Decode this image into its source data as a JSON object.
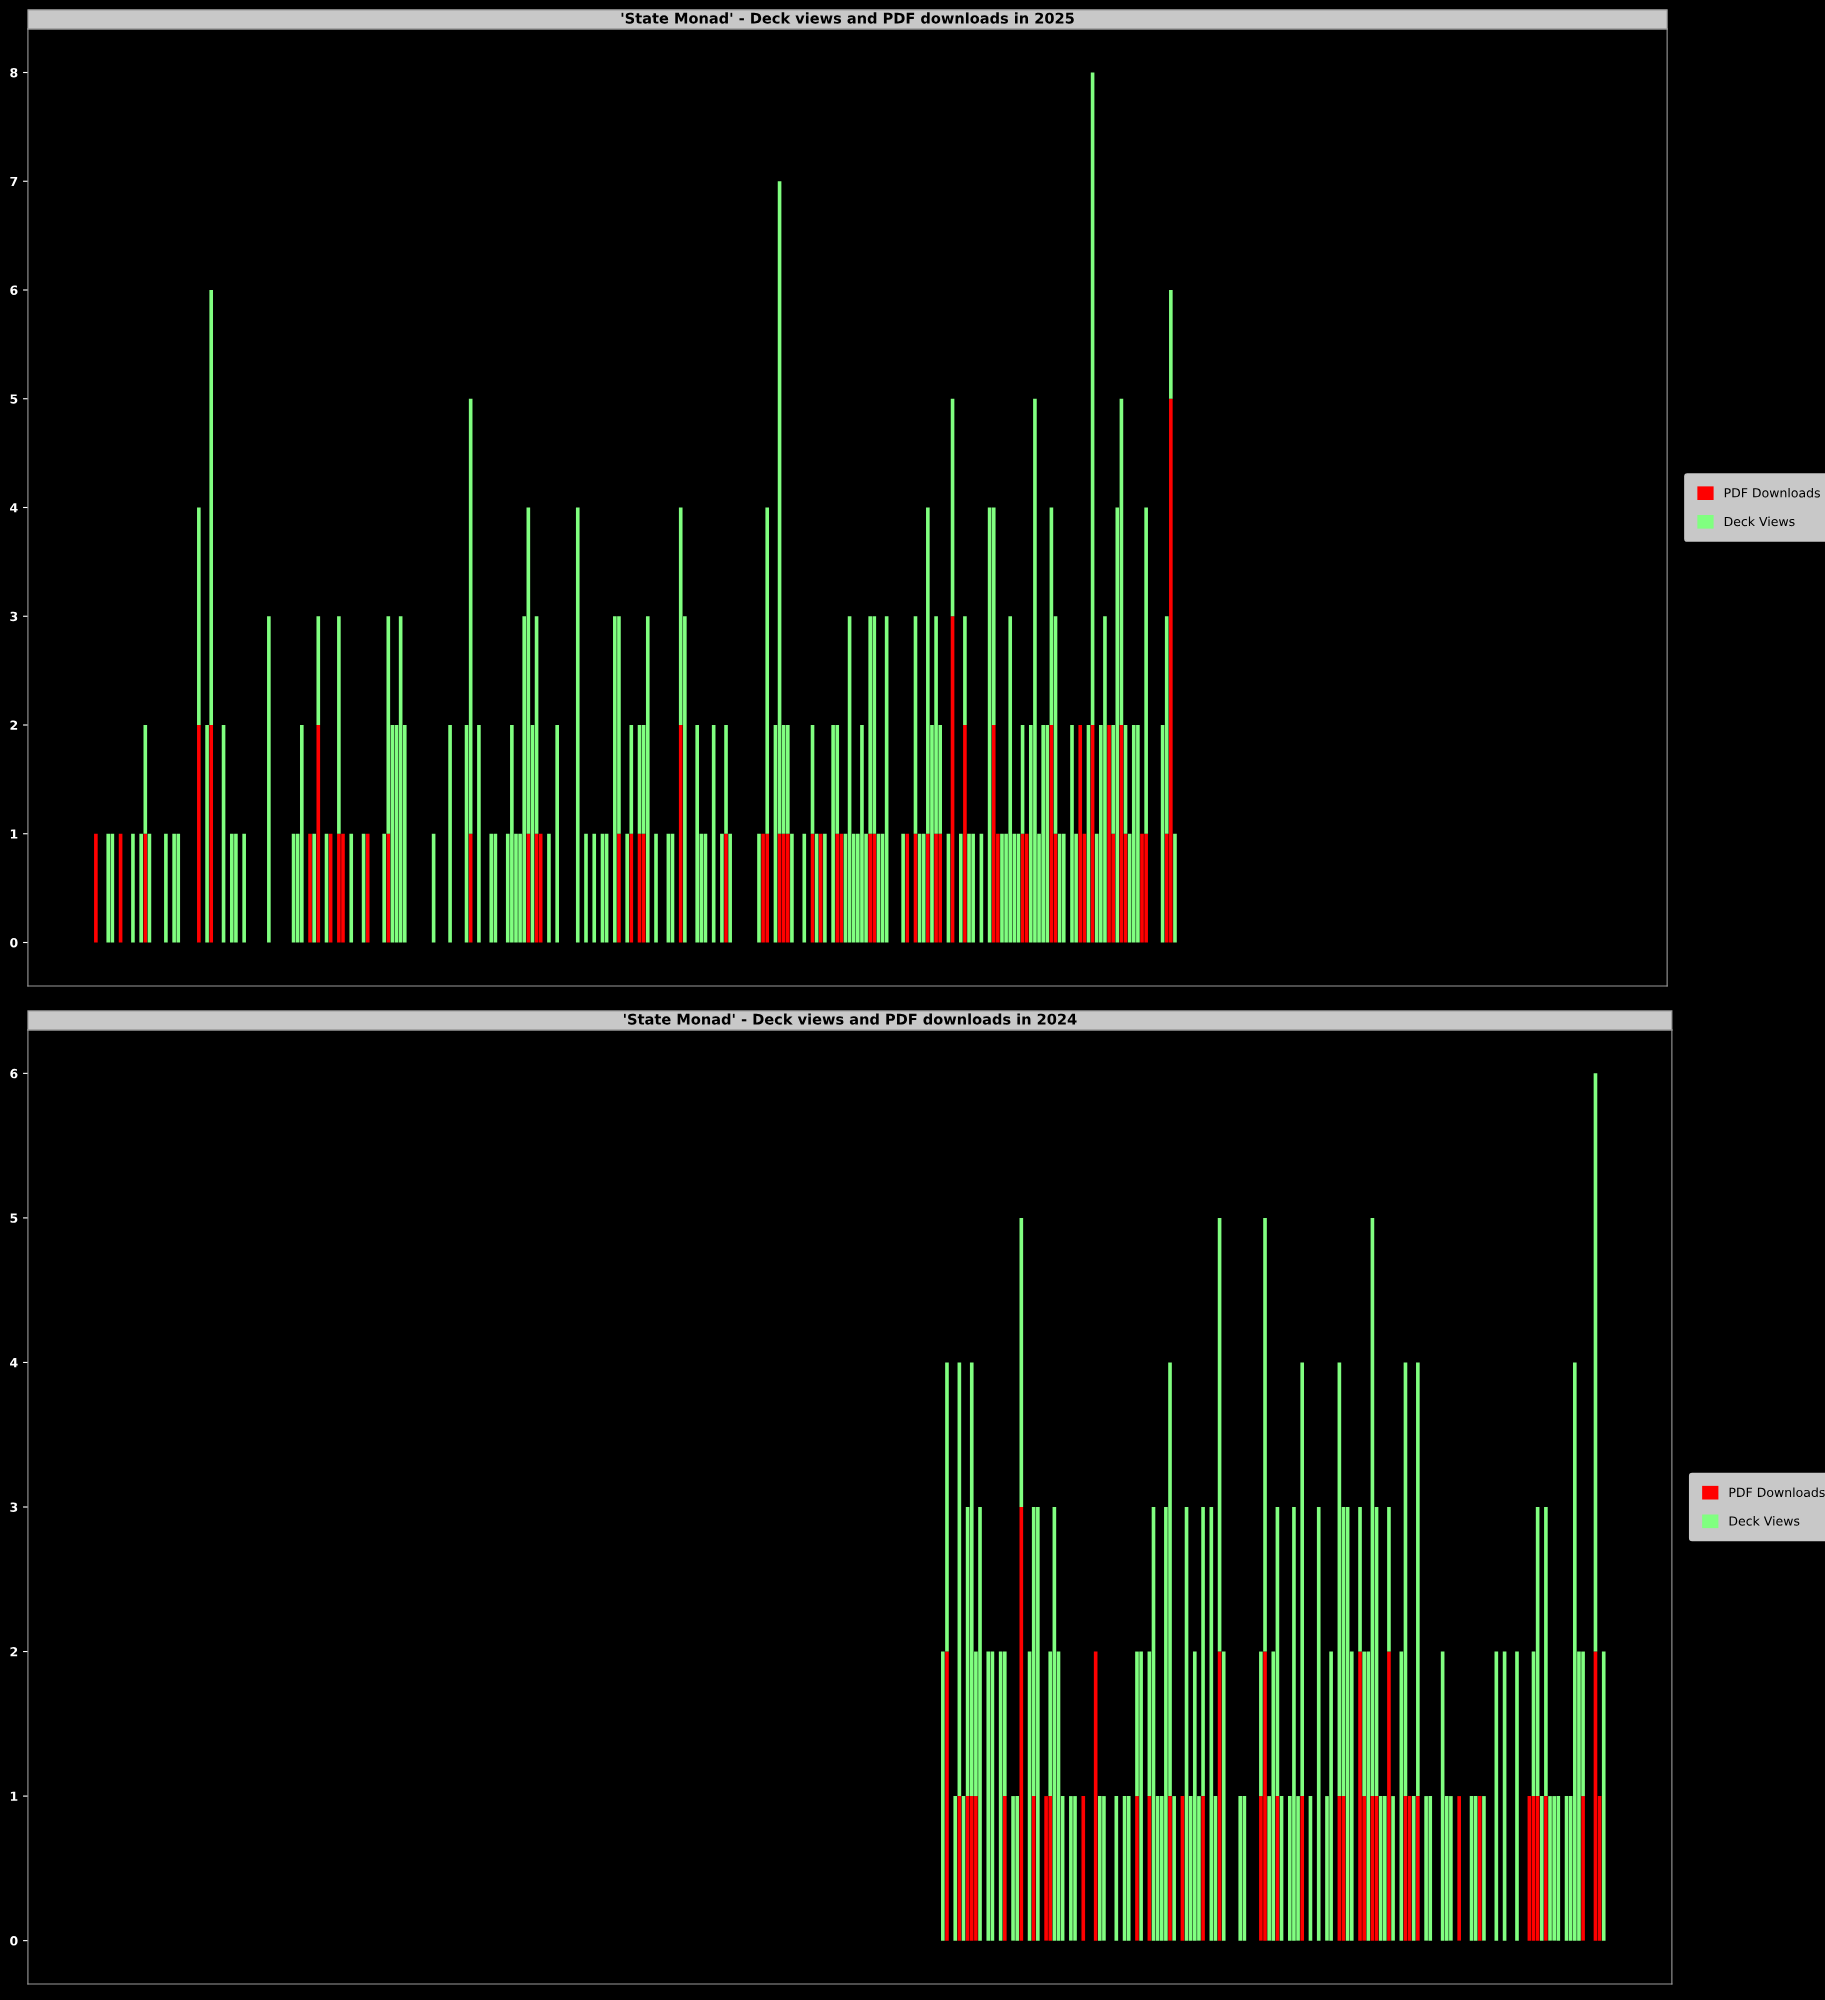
{
  "chart_data": [
    {
      "type": "bar",
      "title": "'State Monad' - Deck views and PDF downloads in 2025",
      "stacked": true,
      "legend": "right",
      "tick_labels": "y",
      "ylim": [
        -0.4,
        8.4
      ],
      "yticks": [
        0,
        1,
        2,
        3,
        4,
        5,
        6,
        7,
        8
      ],
      "categories": [
        null,
        null,
        null,
        null,
        null,
        null,
        null,
        null,
        null,
        null,
        null,
        null,
        null,
        null,
        null,
        null,
        null,
        null,
        null,
        null,
        null,
        null,
        null,
        null,
        null,
        null,
        null,
        null,
        null,
        null,
        null,
        null,
        null,
        null,
        null,
        null,
        null,
        null,
        null,
        null,
        null,
        null,
        null,
        null,
        null,
        null,
        null,
        null,
        null,
        null,
        null,
        null,
        null,
        null,
        null,
        null,
        null,
        null,
        null,
        null,
        null,
        null,
        null,
        null,
        null,
        null,
        null,
        null,
        null,
        null,
        null,
        null,
        null,
        null,
        null,
        null,
        null,
        null,
        null,
        null,
        null,
        null,
        null,
        null,
        null,
        null,
        null,
        null,
        null,
        null,
        null,
        null,
        null,
        null,
        null,
        null,
        null,
        null,
        null,
        null,
        null,
        null,
        null,
        null,
        null,
        null,
        null,
        null,
        null,
        null,
        null,
        null,
        null,
        null,
        null,
        null,
        null,
        null,
        null,
        null,
        null,
        null,
        null,
        null,
        null,
        null,
        null,
        null,
        null,
        null,
        null,
        null,
        null,
        null,
        null,
        null,
        null,
        null,
        null,
        null,
        null,
        null,
        null,
        null,
        null,
        null,
        null,
        null,
        null,
        null,
        null,
        null,
        null,
        null,
        null,
        null,
        null,
        null,
        null,
        null,
        null,
        null,
        null,
        null,
        null,
        null,
        null,
        null,
        null,
        null,
        null,
        null,
        null,
        null,
        null,
        null,
        null,
        null,
        null,
        null,
        null,
        null,
        null,
        null,
        null,
        null,
        null,
        null,
        null,
        null,
        null,
        null,
        null,
        null,
        null,
        null,
        null,
        null,
        null,
        null,
        null,
        null,
        null,
        null,
        null,
        null,
        null,
        null,
        null,
        null,
        null,
        null,
        null,
        null,
        null,
        null,
        null,
        null,
        null,
        null,
        null,
        null,
        null,
        null,
        null,
        null,
        null,
        null,
        null,
        null,
        null,
        null,
        null,
        null,
        null,
        null,
        null,
        null,
        null,
        null,
        null,
        null,
        null,
        null,
        null,
        null,
        null,
        null,
        null,
        null,
        null,
        null,
        null,
        null,
        null,
        null,
        null,
        null,
        null,
        null,
        null,
        null,
        null,
        null,
        null,
        null,
        null,
        null,
        null,
        null,
        null,
        null,
        null,
        null,
        null,
        null,
        null,
        null,
        null,
        null,
        null,
        null,
        null,
        null,
        null,
        null,
        null,
        null,
        null,
        null,
        null,
        null,
        null,
        null,
        null,
        null,
        null,
        null,
        null,
        null,
        null,
        null,
        null,
        null,
        null,
        null,
        null,
        null,
        null,
        null,
        null,
        null,
        null,
        null,
        null,
        null,
        null,
        null,
        null,
        null,
        null,
        null,
        null,
        null,
        null,
        null,
        null,
        null,
        null,
        null,
        null,
        null,
        null,
        null,
        null,
        null,
        null,
        null,
        null,
        null,
        null,
        null,
        null,
        null,
        null,
        null,
        null,
        null,
        null,
        null,
        null,
        null,
        null,
        null,
        null,
        null,
        null,
        null,
        null,
        null,
        null,
        null,
        null,
        null,
        null,
        null,
        null,
        null,
        null,
        null,
        null,
        null,
        null,
        null,
        null,
        null,
        null,
        null,
        null,
        null,
        null,
        null,
        null,
        null,
        null,
        null,
        null,
        null,
        null,
        null,
        null,
        null,
        null,
        null,
        null,
        null,
        null,
        null
      ],
      "series": [
        {
          "name": "PDF Downloads",
          "color": "#ff0000",
          "values": [
            0,
            0,
            0,
            0,
            0,
            0,
            0,
            0,
            0,
            0,
            0,
            0,
            0,
            0,
            0,
            0,
            1,
            0,
            0,
            0,
            0,
            0,
            1,
            0,
            0,
            0,
            0,
            0,
            1,
            0,
            0,
            0,
            0,
            0,
            0,
            0,
            0,
            0,
            0,
            0,
            0,
            2,
            0,
            0,
            2,
            0,
            0,
            0,
            0,
            0,
            0,
            0,
            0,
            0,
            0,
            0,
            0,
            0,
            0,
            0,
            0,
            0,
            0,
            0,
            0,
            0,
            0,
            0,
            1,
            0,
            2,
            0,
            0,
            1,
            0,
            1,
            1,
            0,
            0,
            0,
            0,
            0,
            1,
            0,
            0,
            0,
            0,
            1,
            0,
            0,
            0,
            0,
            0,
            0,
            0,
            0,
            0,
            0,
            0,
            0,
            0,
            0,
            0,
            0,
            0,
            0,
            0,
            1,
            0,
            0,
            0,
            0,
            0,
            0,
            0,
            0,
            0,
            0,
            0,
            0,
            0,
            1,
            0,
            1,
            1,
            0,
            0,
            0,
            0,
            0,
            0,
            0,
            0,
            0,
            0,
            0,
            0,
            0,
            0,
            0,
            0,
            0,
            0,
            1,
            0,
            0,
            1,
            0,
            1,
            1,
            0,
            0,
            0,
            0,
            0,
            0,
            0,
            0,
            2,
            0,
            0,
            0,
            0,
            0,
            0,
            0,
            0,
            0,
            0,
            1,
            0,
            0,
            0,
            0,
            0,
            0,
            0,
            0,
            1,
            1,
            0,
            0,
            1,
            1,
            1,
            0,
            0,
            0,
            0,
            0,
            1,
            0,
            1,
            0,
            0,
            0,
            1,
            1,
            0,
            0,
            0,
            0,
            0,
            0,
            1,
            1,
            0,
            0,
            0,
            0,
            0,
            0,
            0,
            1,
            0,
            1,
            0,
            0,
            1,
            0,
            1,
            1,
            0,
            0,
            3,
            0,
            0,
            2,
            0,
            0,
            0,
            0,
            0,
            0,
            2,
            1,
            0,
            0,
            0,
            0,
            0,
            1,
            1,
            0,
            0,
            0,
            0,
            0,
            2,
            1,
            0,
            0,
            0,
            0,
            0,
            2,
            1,
            0,
            2,
            0,
            0,
            0,
            2,
            1,
            0,
            2,
            1,
            0,
            0,
            0,
            1,
            1,
            0,
            0,
            0,
            0,
            1,
            5,
            0,
            0,
            0,
            0,
            0,
            0,
            0,
            0,
            0,
            0,
            0,
            0,
            0,
            0,
            0,
            0,
            0,
            0,
            0,
            0,
            0,
            0,
            0,
            0,
            0,
            0,
            0,
            0,
            0,
            0,
            0,
            0,
            0,
            0,
            0,
            0,
            0,
            0,
            0,
            0,
            0,
            0,
            0,
            0,
            0,
            0,
            0,
            0,
            0,
            0,
            0,
            0,
            0,
            0,
            0,
            0,
            0,
            0,
            0,
            0,
            0,
            0,
            0,
            0,
            0,
            0,
            0,
            0,
            0,
            0,
            0,
            0,
            0,
            0,
            0,
            0,
            0,
            0,
            0,
            0,
            0,
            0,
            0,
            0,
            0,
            0,
            0,
            0,
            0,
            0,
            0,
            0,
            0,
            0,
            0,
            0,
            0,
            0,
            0,
            0,
            0,
            0,
            0,
            0,
            0,
            0,
            0,
            0,
            0,
            0,
            0,
            0,
            0,
            0,
            0,
            0,
            0,
            0,
            0,
            0
          ]
        },
        {
          "name": "Deck Views",
          "color": "#80ff80",
          "values": [
            0,
            0,
            0,
            0,
            0,
            0,
            0,
            0,
            0,
            0,
            0,
            0,
            0,
            0,
            0,
            0,
            0,
            0,
            0,
            1,
            1,
            0,
            0,
            0,
            0,
            1,
            0,
            1,
            1,
            1,
            0,
            0,
            0,
            1,
            0,
            1,
            1,
            0,
            0,
            0,
            0,
            2,
            0,
            2,
            4,
            0,
            0,
            2,
            0,
            1,
            1,
            0,
            1,
            0,
            0,
            0,
            0,
            0,
            3,
            0,
            0,
            0,
            0,
            0,
            1,
            1,
            2,
            0,
            0,
            1,
            1,
            0,
            1,
            0,
            0,
            2,
            0,
            0,
            1,
            0,
            0,
            1,
            0,
            0,
            0,
            0,
            1,
            2,
            2,
            2,
            3,
            2,
            0,
            0,
            0,
            0,
            0,
            0,
            1,
            0,
            0,
            0,
            2,
            0,
            0,
            0,
            2,
            4,
            0,
            2,
            0,
            0,
            1,
            1,
            0,
            0,
            1,
            2,
            1,
            1,
            3,
            3,
            2,
            2,
            0,
            0,
            1,
            0,
            2,
            0,
            0,
            0,
            0,
            4,
            0,
            1,
            0,
            1,
            0,
            1,
            1,
            0,
            3,
            2,
            0,
            1,
            1,
            0,
            1,
            1,
            3,
            0,
            1,
            0,
            0,
            1,
            1,
            0,
            2,
            3,
            0,
            0,
            2,
            1,
            1,
            0,
            2,
            0,
            1,
            1,
            1,
            0,
            0,
            0,
            0,
            0,
            0,
            1,
            0,
            3,
            0,
            2,
            6,
            1,
            1,
            1,
            0,
            0,
            1,
            0,
            1,
            1,
            0,
            1,
            0,
            2,
            1,
            0,
            1,
            3,
            1,
            1,
            2,
            1,
            2,
            2,
            1,
            1,
            3,
            0,
            0,
            0,
            1,
            0,
            0,
            2,
            1,
            1,
            3,
            2,
            2,
            1,
            0,
            1,
            2,
            0,
            1,
            1,
            1,
            1,
            0,
            1,
            0,
            4,
            2,
            0,
            1,
            1,
            3,
            1,
            1,
            1,
            0,
            2,
            5,
            1,
            2,
            2,
            2,
            2,
            1,
            1,
            0,
            2,
            1,
            0,
            0,
            2,
            6,
            1,
            2,
            3,
            0,
            1,
            4,
            3,
            1,
            1,
            2,
            2,
            0,
            3,
            0,
            0,
            0,
            2,
            2,
            1,
            1,
            0,
            0,
            0,
            0,
            0,
            0,
            0,
            0,
            0,
            0,
            0,
            0,
            0,
            0,
            0,
            0,
            0,
            0,
            0,
            0,
            0,
            0,
            0,
            0,
            0,
            0,
            0,
            0,
            0,
            0,
            0,
            0,
            0,
            0,
            0,
            0,
            0,
            0,
            0,
            0,
            0,
            0,
            0,
            0,
            0,
            0,
            0,
            0,
            0,
            0,
            0,
            0,
            0,
            0,
            0,
            0,
            0,
            0,
            0,
            0,
            0,
            0,
            0,
            0,
            0,
            0,
            0,
            0,
            0,
            0,
            0,
            0,
            0,
            0,
            0,
            0,
            0,
            0,
            0,
            0,
            0,
            0,
            0,
            0,
            0,
            0,
            0,
            0,
            0,
            0,
            0,
            0,
            0,
            0,
            0,
            0,
            0,
            0,
            0,
            0,
            0,
            0,
            0,
            0,
            0,
            0,
            0,
            0,
            0,
            0,
            0,
            0,
            0,
            0,
            0,
            0,
            0,
            0,
            0
          ]
        }
      ]
    },
    {
      "type": "bar",
      "title": "'State Monad' - Deck views and PDF downloads in 2024",
      "stacked": true,
      "legend": "right",
      "tick_labels": "y",
      "ylim": [
        -0.3,
        6.3
      ],
      "yticks": [
        0,
        1,
        2,
        3,
        4,
        5,
        6
      ],
      "categories": [
        null,
        null,
        null,
        null,
        null,
        null,
        null,
        null,
        null,
        null,
        null,
        null,
        null,
        null,
        null,
        null,
        null,
        null,
        null,
        null,
        null,
        null,
        null,
        null,
        null,
        null,
        null,
        null,
        null,
        null,
        null,
        null,
        null,
        null,
        null,
        null,
        null,
        null,
        null,
        null,
        null,
        null,
        null,
        null,
        null,
        null,
        null,
        null,
        null,
        null,
        null,
        null,
        null,
        null,
        null,
        null,
        null,
        null,
        null,
        null,
        null,
        null,
        null,
        null,
        null,
        null,
        null,
        null,
        null,
        null,
        null,
        null,
        null,
        null,
        null,
        null,
        null,
        null,
        null,
        null,
        null,
        null,
        null,
        null,
        null,
        null,
        null,
        null,
        null,
        null,
        null,
        null,
        null,
        null,
        null,
        null,
        null,
        null,
        null,
        null,
        null,
        null,
        null,
        null,
        null,
        null,
        null,
        null,
        null,
        null,
        null,
        null,
        null,
        null,
        null,
        null,
        null,
        null,
        null,
        null,
        null,
        null,
        null,
        null,
        null,
        null,
        null,
        null,
        null,
        null,
        null,
        null,
        null,
        null,
        null,
        null,
        null,
        null,
        null,
        null,
        null,
        null,
        null,
        null,
        null,
        null,
        null,
        null,
        null,
        null,
        null,
        null,
        null,
        null,
        null,
        null,
        null,
        null,
        null,
        null,
        null,
        null,
        null,
        null,
        null,
        null,
        null,
        null,
        null,
        null,
        null,
        null,
        null,
        null,
        null,
        null,
        null,
        null,
        null,
        null,
        null,
        null,
        null,
        null,
        null,
        null,
        null,
        null,
        null,
        null,
        null,
        null,
        null,
        null,
        null,
        null,
        null,
        null,
        null,
        null,
        null,
        null,
        null,
        null,
        null,
        null,
        null,
        null,
        null,
        null,
        null,
        null,
        null,
        null,
        null,
        null,
        null,
        null,
        null,
        null,
        null,
        null,
        null,
        null,
        null,
        null,
        null,
        null,
        null,
        null,
        null,
        null,
        null,
        null,
        null,
        null,
        null,
        null,
        null,
        null,
        null,
        null,
        null,
        null,
        null,
        null,
        null,
        null,
        null,
        null,
        null,
        null,
        null,
        null,
        null,
        null,
        null,
        null,
        null,
        null,
        null,
        null,
        null,
        null,
        null,
        null,
        null,
        null,
        null,
        null,
        null,
        null,
        null,
        null,
        null,
        null,
        null,
        null,
        null,
        null,
        null,
        null,
        null,
        null,
        null,
        null,
        null,
        null,
        null,
        null,
        null,
        null,
        null,
        null,
        null,
        null,
        null,
        null,
        null,
        null,
        null,
        null,
        null,
        null,
        null,
        null,
        null,
        null,
        null,
        null,
        null,
        null,
        null,
        null,
        null,
        null,
        null,
        null,
        null,
        null,
        null,
        null,
        null,
        null,
        null,
        null,
        null,
        null,
        null,
        null,
        null,
        null,
        null,
        null,
        null,
        null,
        null,
        null,
        null,
        null,
        null,
        null,
        null,
        null,
        null,
        null,
        null,
        null,
        null,
        null,
        null,
        null,
        null,
        null,
        null,
        null,
        null,
        null,
        null,
        null,
        null,
        null,
        null,
        null,
        null,
        null,
        null,
        null,
        null,
        null,
        null,
        null,
        null,
        null,
        null,
        null,
        null,
        null,
        null,
        null,
        null,
        null,
        null,
        null,
        null,
        null,
        null,
        null,
        null,
        null,
        null,
        null,
        null,
        null,
        null,
        null,
        null,
        null
      ],
      "series": [
        {
          "name": "PDF Downloads",
          "color": "#ff0000",
          "values": [
            0,
            0,
            0,
            0,
            0,
            0,
            0,
            0,
            0,
            0,
            0,
            0,
            0,
            0,
            0,
            0,
            0,
            0,
            0,
            0,
            0,
            0,
            0,
            0,
            0,
            0,
            0,
            0,
            0,
            0,
            0,
            0,
            0,
            0,
            0,
            0,
            0,
            0,
            0,
            0,
            0,
            0,
            0,
            0,
            0,
            0,
            0,
            0,
            0,
            0,
            0,
            0,
            0,
            0,
            0,
            0,
            0,
            0,
            0,
            0,
            0,
            0,
            0,
            0,
            0,
            0,
            0,
            0,
            0,
            0,
            0,
            0,
            0,
            0,
            0,
            0,
            0,
            0,
            0,
            0,
            0,
            0,
            0,
            0,
            0,
            0,
            0,
            0,
            0,
            0,
            0,
            0,
            0,
            0,
            0,
            0,
            0,
            0,
            0,
            0,
            0,
            0,
            0,
            0,
            0,
            0,
            0,
            0,
            0,
            0,
            0,
            0,
            0,
            0,
            0,
            0,
            0,
            0,
            0,
            0,
            0,
            0,
            0,
            0,
            0,
            0,
            0,
            0,
            0,
            0,
            0,
            0,
            0,
            0,
            0,
            0,
            0,
            0,
            0,
            0,
            0,
            0,
            0,
            0,
            0,
            0,
            0,
            0,
            0,
            0,
            0,
            0,
            0,
            0,
            0,
            0,
            0,
            0,
            0,
            0,
            0,
            0,
            0,
            0,
            0,
            0,
            0,
            0,
            0,
            0,
            0,
            0,
            0,
            0,
            0,
            0,
            0,
            0,
            0,
            0,
            0,
            0,
            0,
            0,
            0,
            0,
            0,
            0,
            0,
            0,
            0,
            0,
            0,
            0,
            0,
            0,
            0,
            0,
            0,
            0,
            0,
            0,
            0,
            0,
            0,
            0,
            0,
            0,
            0,
            0,
            0,
            0,
            0,
            0,
            0,
            0,
            0,
            0,
            0,
            0,
            0,
            0,
            2,
            0,
            0,
            1,
            0,
            1,
            1,
            1,
            0,
            0,
            0,
            0,
            0,
            0,
            1,
            0,
            0,
            0,
            3,
            0,
            0,
            1,
            0,
            0,
            1,
            1,
            0,
            0,
            0,
            0,
            0,
            0,
            0,
            1,
            0,
            0,
            2,
            0,
            0,
            0,
            0,
            0,
            0,
            0,
            0,
            0,
            1,
            0,
            0,
            1,
            0,
            0,
            0,
            0,
            1,
            0,
            0,
            1,
            0,
            0,
            0,
            0,
            1,
            0,
            0,
            0,
            2,
            0,
            0,
            0,
            0,
            0,
            0,
            0,
            0,
            0,
            1,
            2,
            0,
            0,
            1,
            0,
            0,
            0,
            0,
            0,
            1,
            0,
            0,
            0,
            0,
            0,
            0,
            0,
            0,
            1,
            1,
            0,
            0,
            0,
            2,
            1,
            0,
            1,
            1,
            0,
            0,
            2,
            0,
            0,
            0,
            1,
            1,
            0,
            1,
            0,
            0,
            0,
            0,
            0,
            0,
            0,
            0,
            0,
            1,
            0,
            0,
            0,
            0,
            1,
            0,
            0,
            0,
            0,
            0,
            0,
            0,
            0,
            0,
            0,
            0,
            1,
            1,
            1,
            0,
            1,
            0,
            0,
            0,
            0,
            0,
            0,
            0,
            0,
            1,
            0,
            0,
            2,
            1,
            0,
            0,
            0,
            0,
            0,
            0,
            0,
            0,
            0,
            0,
            0,
            0,
            0,
            0,
            0,
            0,
            0
          ]
        },
        {
          "name": "Deck Views",
          "color": "#80ff80",
          "values": [
            0,
            0,
            0,
            0,
            0,
            0,
            0,
            0,
            0,
            0,
            0,
            0,
            0,
            0,
            0,
            0,
            0,
            0,
            0,
            0,
            0,
            0,
            0,
            0,
            0,
            0,
            0,
            0,
            0,
            0,
            0,
            0,
            0,
            0,
            0,
            0,
            0,
            0,
            0,
            0,
            0,
            0,
            0,
            0,
            0,
            0,
            0,
            0,
            0,
            0,
            0,
            0,
            0,
            0,
            0,
            0,
            0,
            0,
            0,
            0,
            0,
            0,
            0,
            0,
            0,
            0,
            0,
            0,
            0,
            0,
            0,
            0,
            0,
            0,
            0,
            0,
            0,
            0,
            0,
            0,
            0,
            0,
            0,
            0,
            0,
            0,
            0,
            0,
            0,
            0,
            0,
            0,
            0,
            0,
            0,
            0,
            0,
            0,
            0,
            0,
            0,
            0,
            0,
            0,
            0,
            0,
            0,
            0,
            0,
            0,
            0,
            0,
            0,
            0,
            0,
            0,
            0,
            0,
            0,
            0,
            0,
            0,
            0,
            0,
            0,
            0,
            0,
            0,
            0,
            0,
            0,
            0,
            0,
            0,
            0,
            0,
            0,
            0,
            0,
            0,
            0,
            0,
            0,
            0,
            0,
            0,
            0,
            0,
            0,
            0,
            0,
            0,
            0,
            0,
            0,
            0,
            0,
            0,
            0,
            0,
            0,
            0,
            0,
            0,
            0,
            0,
            0,
            0,
            0,
            0,
            0,
            0,
            0,
            0,
            0,
            0,
            0,
            0,
            0,
            0,
            0,
            0,
            0,
            0,
            0,
            0,
            0,
            0,
            0,
            0,
            0,
            0,
            0,
            0,
            0,
            0,
            0,
            0,
            0,
            0,
            0,
            0,
            0,
            0,
            0,
            0,
            0,
            0,
            0,
            0,
            0,
            0,
            0,
            0,
            0,
            0,
            0,
            0,
            0,
            0,
            0,
            2,
            2,
            0,
            1,
            3,
            1,
            2,
            3,
            1,
            3,
            0,
            2,
            2,
            0,
            2,
            1,
            0,
            1,
            1,
            2,
            0,
            2,
            2,
            3,
            0,
            0,
            1,
            3,
            2,
            1,
            0,
            1,
            1,
            0,
            0,
            0,
            0,
            0,
            1,
            1,
            0,
            0,
            1,
            0,
            1,
            1,
            0,
            1,
            2,
            0,
            1,
            3,
            1,
            1,
            3,
            3,
            1,
            0,
            0,
            3,
            1,
            2,
            1,
            2,
            0,
            3,
            1,
            3,
            2,
            0,
            0,
            0,
            1,
            1,
            0,
            0,
            0,
            1,
            3,
            1,
            2,
            2,
            1,
            0,
            1,
            3,
            1,
            3,
            0,
            1,
            0,
            3,
            0,
            1,
            2,
            0,
            3,
            2,
            3,
            2,
            0,
            1,
            1,
            2,
            4,
            2,
            1,
            1,
            1,
            1,
            0,
            2,
            3,
            0,
            1,
            3,
            0,
            1,
            1,
            0,
            0,
            2,
            1,
            1,
            0,
            0,
            0,
            0,
            1,
            1,
            0,
            1,
            0,
            0,
            2,
            0,
            2,
            0,
            0,
            2,
            0,
            0,
            0,
            1,
            2,
            1,
            2,
            1,
            1,
            1,
            0,
            1,
            1,
            4,
            2,
            1,
            0,
            0,
            4,
            0,
            2,
            0,
            0,
            0,
            0,
            0,
            0,
            0,
            0,
            0,
            0,
            0,
            0,
            0,
            0,
            0,
            0
          ]
        }
      ]
    }
  ]
}
